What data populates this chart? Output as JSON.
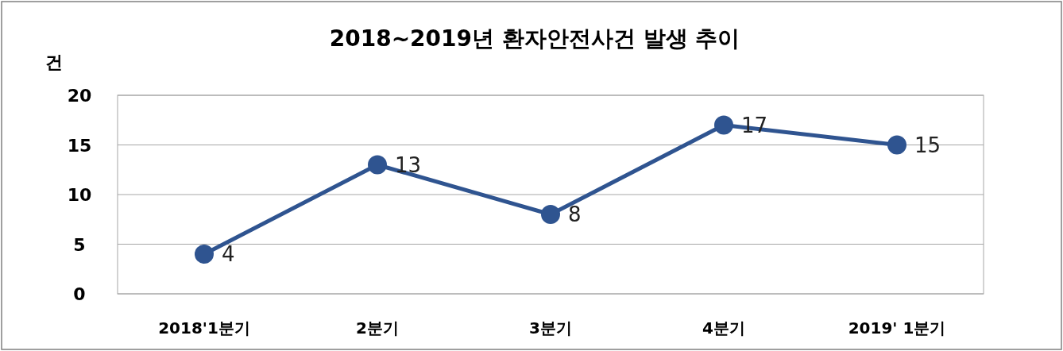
{
  "chart_data": {
    "type": "line",
    "title": "2018~2019년 환자안전사건 발생 추이",
    "ylabel": "건",
    "categories": [
      "2018'1분기",
      "2분기",
      "3분기",
      "4분기",
      "2019' 1분기"
    ],
    "series": [
      {
        "color": "#2f5490",
        "values": [
          4,
          13,
          8,
          17,
          15
        ]
      }
    ],
    "ylim": [
      0,
      20
    ],
    "yticks": [
      0,
      5,
      10,
      15,
      20
    ],
    "grid": "y",
    "marker": "circle",
    "line_style": "solid",
    "data_labels": true
  }
}
